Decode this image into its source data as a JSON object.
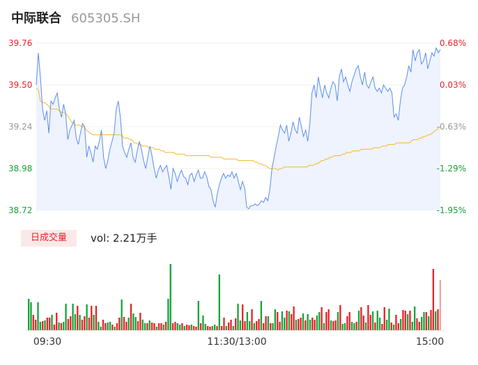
{
  "header": {
    "stock_name": "中际联合",
    "stock_code": "605305.SH"
  },
  "volume_panel": {
    "tab_label": "日成交量",
    "vol_label": "vol: 2.21万手"
  },
  "colors": {
    "price_line": "#5b8def",
    "avg_line": "#f5b82e",
    "up": "#e8242a",
    "down": "#1aa33a",
    "neutral": "#9a9a9a",
    "area": "#eef3fd"
  },
  "chart_data": [
    {
      "type": "line",
      "title": "",
      "ylim": [
        38.72,
        39.76
      ],
      "y_ticks_left": [
        "39.76",
        "39.50",
        "39.24",
        "38.98",
        "38.72"
      ],
      "y_ticks_right": [
        "0.68%",
        "0.03%",
        "-0.63%",
        "-1.29%",
        "-1.95%"
      ],
      "x_ticks": [
        "09:30",
        "11:30/13:00",
        "15:00"
      ],
      "series": [
        {
          "name": "",
          "values": [
            39.5,
            39.7,
            39.55,
            39.35,
            39.28,
            39.34,
            39.2,
            39.4,
            39.38,
            39.42,
            39.45,
            39.35,
            39.3,
            39.38,
            39.32,
            39.16,
            39.22,
            39.25,
            39.28,
            39.17,
            39.13,
            39.2,
            39.26,
            39.24,
            39.05,
            39.12,
            39.08,
            39.02,
            39.12,
            39.1,
            39.15,
            39.22,
            39.05,
            38.98,
            39.03,
            39.1,
            39.15,
            39.2,
            39.35,
            39.4,
            39.3,
            39.12,
            39.08,
            39.05,
            39.1,
            39.14,
            39.05,
            39.02,
            39.09,
            39.15,
            39.1,
            39.03,
            38.98,
            39.05,
            39.12,
            39.06,
            38.98,
            38.92,
            38.97,
            39.0,
            38.96,
            38.98,
            39.0,
            38.93,
            38.85,
            38.98,
            38.95,
            38.9,
            38.94,
            38.97,
            38.93,
            38.92,
            38.88,
            38.94,
            38.95,
            38.9,
            38.94,
            38.97,
            38.92,
            38.92,
            38.96,
            38.93,
            38.87,
            38.85,
            38.78,
            38.74,
            38.82,
            38.88,
            38.92,
            38.95,
            38.92,
            38.94,
            38.93,
            38.96,
            38.92,
            38.95,
            38.9,
            38.85,
            38.9,
            38.86,
            38.74,
            38.73,
            38.75,
            38.75,
            38.76,
            38.75,
            38.76,
            38.78,
            38.77,
            38.8,
            38.78,
            38.85,
            38.98,
            39.05,
            39.12,
            39.18,
            39.25,
            39.22,
            39.2,
            39.25,
            39.15,
            39.2,
            39.27,
            39.22,
            39.2,
            39.3,
            39.24,
            39.18,
            39.22,
            39.15,
            39.26,
            39.45,
            39.5,
            39.42,
            39.55,
            39.48,
            39.42,
            39.5,
            39.45,
            39.42,
            39.48,
            39.52,
            39.5,
            39.4,
            39.55,
            39.6,
            39.52,
            39.55,
            39.5,
            39.46,
            39.52,
            39.56,
            39.6,
            39.62,
            39.55,
            39.5,
            39.58,
            39.5,
            39.48,
            39.52,
            39.55,
            39.48,
            39.46,
            39.48,
            39.45,
            39.5,
            39.48,
            39.46,
            39.48,
            39.45,
            39.3,
            39.32,
            39.28,
            39.4,
            39.48,
            39.5,
            39.55,
            39.62,
            39.58,
            39.72,
            39.65,
            39.7,
            39.72,
            39.63,
            39.65,
            39.7,
            39.6,
            39.65,
            39.7,
            39.68,
            39.73,
            39.7,
            39.72
          ]
        },
        {
          "name": "",
          "values": [
            39.48,
            39.47,
            39.4,
            39.39,
            39.39,
            39.38,
            39.37,
            39.35,
            39.35,
            39.35,
            39.35,
            39.34,
            39.33,
            39.33,
            39.32,
            39.31,
            39.29,
            39.27,
            39.26,
            39.25,
            39.25,
            39.25,
            39.24,
            39.24,
            39.22,
            39.21,
            39.2,
            39.19,
            39.19,
            39.19,
            39.19,
            39.19,
            39.19,
            39.19,
            39.19,
            39.19,
            39.19,
            39.19,
            39.19,
            39.19,
            39.19,
            39.19,
            39.17,
            39.17,
            39.17,
            39.16,
            39.16,
            39.14,
            39.14,
            39.13,
            39.13,
            39.12,
            39.12,
            39.12,
            39.11,
            39.11,
            39.11,
            39.1,
            39.1,
            39.1,
            39.09,
            39.09,
            39.08,
            39.08,
            39.08,
            39.08,
            39.08,
            39.07,
            39.07,
            39.07,
            39.07,
            39.07,
            39.06,
            39.06,
            39.06,
            39.06,
            39.06,
            39.06,
            39.06,
            39.06,
            39.06,
            39.06,
            39.06,
            39.06,
            39.05,
            39.05,
            39.05,
            39.05,
            39.05,
            39.05,
            39.04,
            39.04,
            39.04,
            39.04,
            39.04,
            39.04,
            39.04,
            39.03,
            39.03,
            39.03,
            39.03,
            39.03,
            39.03,
            39.03,
            39.03,
            39.02,
            39.02,
            39.01,
            39.01,
            39.0,
            39.0,
            38.99,
            38.98,
            38.98,
            38.98,
            38.98,
            38.97,
            38.98,
            38.98,
            38.99,
            38.99,
            38.99,
            38.99,
            38.99,
            38.99,
            38.99,
            38.99,
            38.99,
            38.99,
            38.99,
            38.99,
            39.0,
            39.0,
            39.0,
            39.01,
            39.01,
            39.02,
            39.03,
            39.03,
            39.04,
            39.04,
            39.05,
            39.05,
            39.06,
            39.06,
            39.06,
            39.06,
            39.07,
            39.07,
            39.08,
            39.08,
            39.08,
            39.09,
            39.09,
            39.09,
            39.09,
            39.1,
            39.1,
            39.1,
            39.1,
            39.1,
            39.1,
            39.11,
            39.11,
            39.11,
            39.11,
            39.12,
            39.12,
            39.12,
            39.13,
            39.13,
            39.13,
            39.13,
            39.14,
            39.14,
            39.14,
            39.14,
            39.14,
            39.14,
            39.14,
            39.15,
            39.16,
            39.16,
            39.16,
            39.17,
            39.17,
            39.18,
            39.18,
            39.19,
            39.19,
            39.2,
            39.21,
            39.22,
            39.23,
            39.24
          ]
        }
      ]
    },
    {
      "type": "bar",
      "title": "",
      "ylim": [
        0,
        100
      ],
      "values": [
        45,
        40,
        22,
        15,
        40,
        12,
        13,
        14,
        18,
        18,
        22,
        8,
        25,
        11,
        10,
        12,
        38,
        16,
        20,
        38,
        23,
        35,
        22,
        15,
        20,
        37,
        18,
        35,
        22,
        35,
        12,
        5,
        15,
        10,
        11,
        12,
        8,
        5,
        10,
        18,
        44,
        19,
        12,
        18,
        38,
        24,
        19,
        13,
        25,
        15,
        10,
        10,
        14,
        11,
        10,
        5,
        10,
        10,
        8,
        12,
        45,
        95,
        10,
        12,
        10,
        8,
        10,
        6,
        8,
        7,
        8,
        6,
        5,
        42,
        10,
        21,
        9,
        6,
        5,
        6,
        8,
        6,
        80,
        6,
        18,
        6,
        11,
        15,
        6,
        17,
        38,
        14,
        37,
        13,
        26,
        13,
        30,
        10,
        13,
        16,
        42,
        10,
        20,
        20,
        10,
        10,
        30,
        26,
        12,
        27,
        18,
        28,
        27,
        23,
        34,
        15,
        16,
        18,
        24,
        14,
        23,
        15,
        18,
        15,
        21,
        26,
        33,
        10,
        26,
        30,
        14,
        13,
        14,
        26,
        36,
        9,
        10,
        20,
        26,
        12,
        10,
        12,
        28,
        33,
        21,
        11,
        36,
        22,
        27,
        11,
        28,
        18,
        9,
        33,
        15,
        31,
        11,
        8,
        22,
        10,
        16,
        29,
        28,
        23,
        28,
        12,
        34,
        17,
        12,
        19,
        26,
        26,
        20,
        29,
        88,
        27,
        30,
        72
      ]
    }
  ]
}
